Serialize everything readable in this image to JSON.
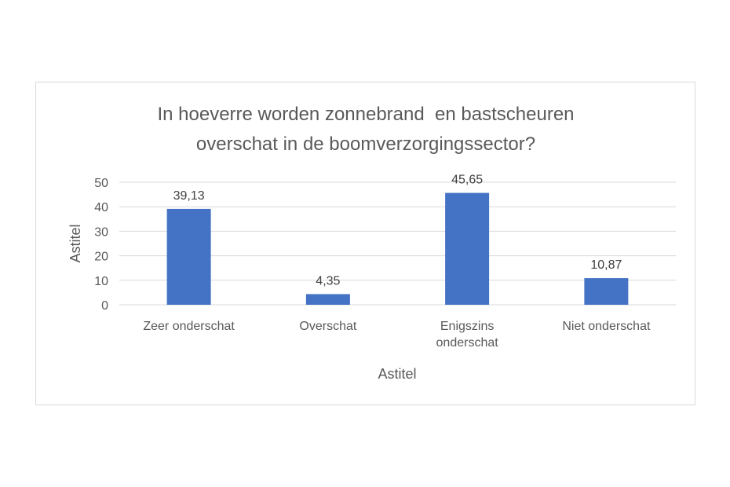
{
  "chart_data": {
    "type": "bar",
    "title_lines": [
      "In hoeverre worden zonnebrand  en bastscheuren",
      "overschat in de boomverzorgingssector?"
    ],
    "categories": [
      [
        "Zeer onderschat"
      ],
      [
        "Overschat"
      ],
      [
        "Enigszins",
        "onderschat"
      ],
      [
        "Niet onderschat"
      ]
    ],
    "values": [
      39.13,
      4.35,
      45.65,
      10.87
    ],
    "data_labels": [
      "39,13",
      "4,35",
      "45,65",
      "10,87"
    ],
    "xlabel": "Astitel",
    "ylabel": "Astitel",
    "ylim": [
      0,
      50
    ],
    "yticks": [
      0,
      10,
      20,
      30,
      40,
      50
    ],
    "grid": true,
    "bar_color": "#4472c4",
    "legend": "none"
  }
}
